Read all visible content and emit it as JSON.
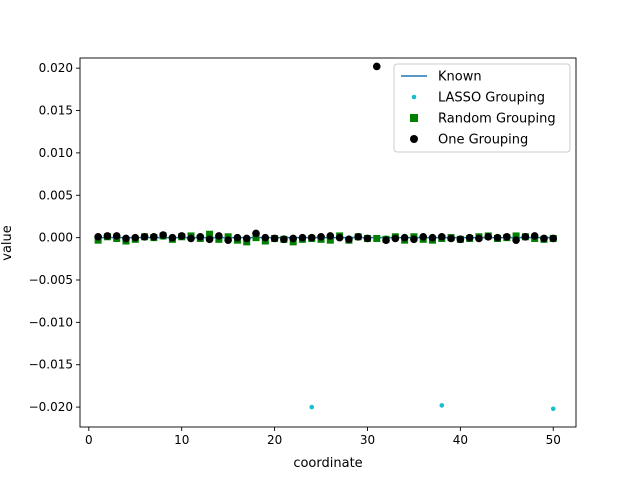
{
  "chart_data": {
    "type": "scatter",
    "xlabel": "coordinate",
    "ylabel": "value",
    "xlim": [
      -0.95,
      52.45
    ],
    "ylim": [
      -0.02235,
      0.0212
    ],
    "xticks": [
      0,
      10,
      20,
      30,
      40,
      50
    ],
    "yticks": [
      -0.02,
      -0.015,
      -0.01,
      -0.005,
      0.0,
      0.005,
      0.01,
      0.015,
      0.02
    ],
    "ytick_labels": [
      "−0.020",
      "−0.015",
      "−0.010",
      "−0.005",
      "0.000",
      "0.005",
      "0.010",
      "0.015",
      "0.020"
    ],
    "legend_position": "top-right",
    "grid": false,
    "series": [
      {
        "name": "Known",
        "kind": "line",
        "color": "#1f77b4",
        "x": [
          1,
          50
        ],
        "y": [
          0.0,
          0.0
        ]
      },
      {
        "name": "LASSO Grouping",
        "kind": "point",
        "marker": "circle-small",
        "color": "#17becf",
        "x": [
          1,
          2,
          3,
          4,
          5,
          6,
          7,
          8,
          9,
          10,
          11,
          12,
          13,
          14,
          15,
          16,
          17,
          18,
          19,
          20,
          21,
          22,
          23,
          24,
          25,
          26,
          27,
          28,
          29,
          30,
          31,
          32,
          33,
          34,
          35,
          36,
          37,
          38,
          39,
          40,
          41,
          42,
          43,
          44,
          45,
          46,
          47,
          48,
          49,
          50
        ],
        "y": [
          0,
          0,
          0,
          0,
          0,
          0,
          0,
          0,
          0,
          0,
          0,
          0,
          0,
          0,
          0,
          0,
          0,
          0,
          0,
          0,
          0,
          0,
          0,
          -0.02,
          0,
          0,
          0,
          0,
          0,
          0,
          0,
          0,
          0,
          0,
          0,
          0,
          0,
          -0.0198,
          0,
          0,
          0,
          0,
          0,
          0,
          0,
          0,
          0,
          0,
          0,
          -0.0202
        ]
      },
      {
        "name": "Random Grouping",
        "kind": "point",
        "marker": "square",
        "color": "#008000",
        "x": [
          1,
          2,
          3,
          4,
          5,
          6,
          7,
          8,
          9,
          10,
          11,
          12,
          13,
          14,
          15,
          16,
          17,
          18,
          19,
          20,
          21,
          22,
          23,
          24,
          25,
          26,
          27,
          28,
          29,
          30,
          31,
          32,
          33,
          34,
          35,
          36,
          37,
          38,
          39,
          40,
          41,
          42,
          43,
          44,
          45,
          46,
          47,
          48,
          49,
          50
        ],
        "y": [
          -0.0003,
          0.0001,
          -0.0001,
          -0.0004,
          -0.0002,
          0.0001,
          0.0,
          0.0002,
          -0.0002,
          0.0001,
          0.0002,
          -0.0001,
          0.0004,
          -0.0002,
          0.0001,
          -0.0003,
          -0.0005,
          0.0,
          -0.0004,
          -0.0001,
          -0.0002,
          -0.0005,
          -0.0002,
          -0.0001,
          -0.0002,
          -0.0003,
          0.0002,
          -0.0003,
          0.0001,
          -0.0001,
          -0.0001,
          -0.0002,
          0.0001,
          -0.0003,
          0.0001,
          -0.0002,
          -0.0003,
          -0.0001,
          0.0,
          -0.0002,
          -0.0001,
          0.0001,
          0.0002,
          -0.0001,
          0.0,
          0.0002,
          0.0001,
          -0.0001,
          -0.0002,
          -0.0001
        ]
      },
      {
        "name": "One Grouping",
        "kind": "point",
        "marker": "circle",
        "color": "#000000",
        "x": [
          1,
          2,
          3,
          4,
          5,
          6,
          7,
          8,
          9,
          10,
          11,
          12,
          13,
          14,
          15,
          16,
          17,
          18,
          19,
          20,
          21,
          22,
          23,
          24,
          25,
          26,
          27,
          28,
          29,
          30,
          31,
          32,
          33,
          34,
          35,
          36,
          37,
          38,
          39,
          40,
          41,
          42,
          43,
          44,
          45,
          46,
          47,
          48,
          49,
          50
        ],
        "y": [
          0.0001,
          0.0002,
          0.0002,
          -0.0001,
          0.0,
          0.0001,
          0.0001,
          0.0003,
          0.0,
          0.0002,
          -0.0001,
          0.0001,
          -0.0002,
          0.0002,
          -0.0003,
          0.0,
          -0.0001,
          0.0005,
          0.0,
          -0.0001,
          -0.0002,
          -0.0001,
          0.0,
          0.0,
          0.0001,
          0.0002,
          0.0,
          -0.0002,
          0.0001,
          -0.0001,
          0.0202,
          -0.0003,
          -0.0001,
          0.0,
          -0.0002,
          0.0001,
          0.0,
          0.0001,
          -0.0001,
          -0.0002,
          0.0,
          -0.0001,
          0.0001,
          0.0,
          0.0001,
          -0.0003,
          0.0001,
          0.0002,
          -0.0001,
          -0.0001
        ]
      }
    ]
  }
}
